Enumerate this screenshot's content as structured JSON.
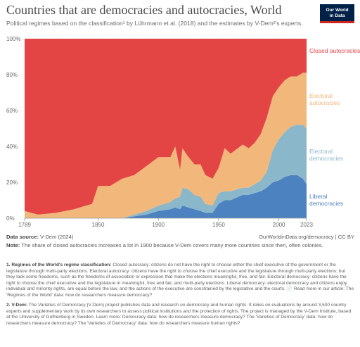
{
  "header": {
    "title": "Countries that are democracies and autocracies, World",
    "subtitle": "Political regimes based on the classification¹ by Lührmann et al. (2018) and the estimates by V-Dem²'s experts.",
    "logo_line1": "Our World",
    "logo_line2": "in Data"
  },
  "chart_data": {
    "type": "area",
    "stacked": "percent",
    "x": [
      1789,
      1800,
      1815,
      1830,
      1845,
      1850,
      1860,
      1870,
      1880,
      1890,
      1900,
      1910,
      1914,
      1918,
      1920,
      1925,
      1930,
      1935,
      1939,
      1945,
      1950,
      1955,
      1960,
      1970,
      1975,
      1980,
      1985,
      1990,
      1995,
      2000,
      2005,
      2010,
      2015,
      2020,
      2023
    ],
    "series": [
      {
        "name": "Liberal democracies",
        "color": "#4c82c0",
        "values": [
          0,
          0,
          0,
          0,
          0,
          0,
          0,
          0,
          1,
          2,
          4,
          5,
          6,
          5,
          7,
          6,
          5,
          4,
          3,
          3,
          8,
          10,
          10,
          13,
          13,
          14,
          15,
          17,
          20,
          21,
          23,
          24,
          24,
          22,
          19
        ]
      },
      {
        "name": "Electoral democracies",
        "color": "#8ab7c9",
        "values": [
          0,
          0,
          0,
          0,
          0,
          0,
          0,
          0,
          1,
          2,
          3,
          4,
          5,
          7,
          10,
          10,
          8,
          8,
          5,
          4,
          6,
          5,
          5,
          4,
          4,
          5,
          6,
          9,
          18,
          23,
          25,
          27,
          28,
          30,
          31
        ]
      },
      {
        "name": "Electoral autocracies",
        "color": "#f2b77a",
        "values": [
          4,
          2,
          3,
          5,
          8,
          18,
          18,
          22,
          22,
          25,
          27,
          25,
          29,
          15,
          22,
          18,
          17,
          18,
          16,
          15,
          14,
          24,
          21,
          24,
          22,
          23,
          26,
          30,
          30,
          29,
          29,
          28,
          27,
          29,
          31
        ]
      },
      {
        "name": "Closed autocracies",
        "color": "#e34545",
        "values": [
          96,
          98,
          97,
          95,
          92,
          82,
          82,
          78,
          76,
          71,
          66,
          66,
          60,
          73,
          61,
          66,
          70,
          70,
          76,
          78,
          72,
          61,
          64,
          59,
          61,
          58,
          53,
          44,
          32,
          27,
          23,
          21,
          21,
          19,
          19
        ]
      }
    ],
    "yticks": [
      "0%",
      "20%",
      "40%",
      "60%",
      "80%",
      "100%"
    ],
    "xticks": [
      "1789",
      "1850",
      "1900",
      "1950",
      "2000",
      "2023"
    ],
    "ylim": [
      0,
      100
    ],
    "grid": true,
    "legend": "right"
  },
  "footer": {
    "source_label": "Data source:",
    "source_value": "V-Dem (2024)",
    "link": "OurWorldinData.org/democracy | CC BY",
    "note_label": "Note:",
    "note_text": "The share of closed autocracies increases a lot in 1900 because V-Dem covers many more countries since then, often colonies."
  },
  "notes": {
    "n1_label": "1. Regimes of the World's regime classification:",
    "n1_text": "Closed autocracy: citizens do not have the right to choose either the chief executive of the government or the legislature through multi-party elections. Electoral autocracy: citizens have the right to choose the chief executive and the legislature through multi-party elections; but they lack some freedoms, such as the freedoms of association or expression that make the elections meaningful, free, and fair. Electoral democracy: citizens have the right to choose the chief executive and the legislature in meaningful, free and fair, and multi-party elections. Liberal democracy: electoral democracy and citizens enjoy individual and minority rights, are equal before the law, and the actions of the executive are constrained by the legislative and the courts. 📄 Read more in our article: The 'Regimes of the World' data: how do researchers measure democracy?",
    "n2_label": "2. V-Dem:",
    "n2_text": "The Varieties of Democracy (V-Dem) project publishes data and research on democracy and human rights. It relies on evaluations by around 3,500 country experts and supplementary work by its own researchers to assess political institutions and the protection of rights. The project is managed by the V-Dem Institute, based at the University of Gothenburg in Sweden. Learn more: Democracy data: how do researchers measure democracy? The 'Varieties of Democracy' data: how do researchers measure democracy? The 'Varieties of Democracy' data: how do researchers measure human rights?"
  }
}
